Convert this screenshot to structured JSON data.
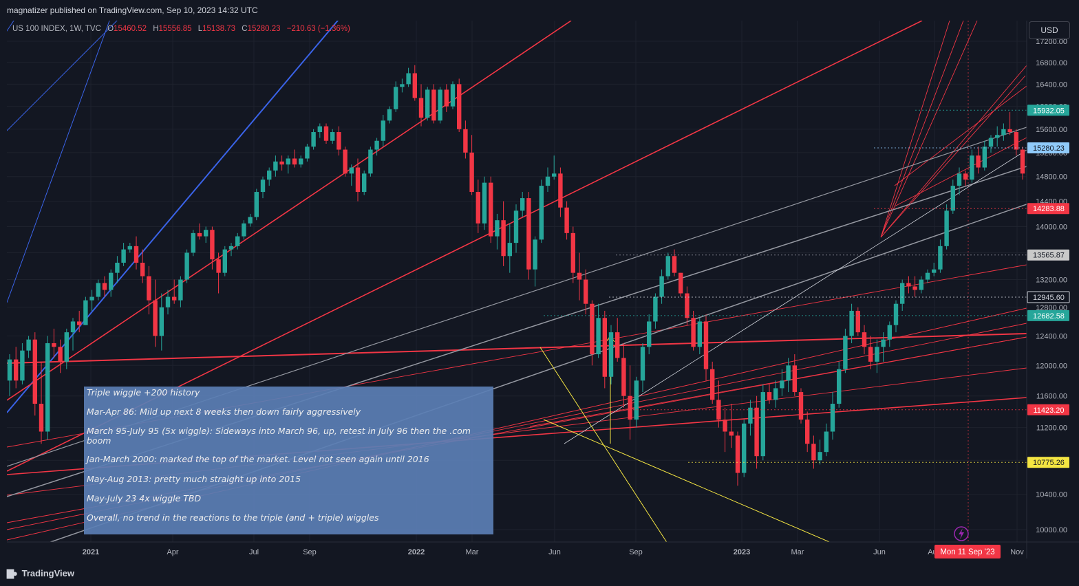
{
  "header": {
    "published": "magnatizer published on TradingView.com, Sep 10, 2023 14:32 UTC"
  },
  "legend": {
    "symbol": "US 100 INDEX, 1W, TVC",
    "open_label": "O",
    "open": "15460.52",
    "high_label": "H",
    "high": "15556.85",
    "low_label": "L",
    "low": "15138.73",
    "close_label": "C",
    "close": "15280.23",
    "change": "−210.63 (−1.36%)"
  },
  "currency_button": "USD",
  "footer": {
    "brand": "TradingView"
  },
  "colors": {
    "background": "#131722",
    "up": "#26a69a",
    "down": "#f23645",
    "red_line": "#f23645",
    "blue_line": "#3a63e8",
    "gray_line": "#9598a1",
    "yellow_line": "#f4e542",
    "note_bg": "#5b7fb5"
  },
  "note": {
    "lines": [
      "Triple wiggle +200 history",
      "Mar-Apr 86:  Mild up next 8 weeks then down fairly aggressively",
      "March 95-July 95 (5x wiggle):  Sideways into March 96, up, retest in July 96 then the .com",
      "boom",
      "Jan-March 2000:  marked the top of the market.   Level not seen again until 2016",
      "May-Aug 2013:  pretty much straight up into 2015",
      "May-July 23 4x wiggle TBD",
      "Overall, no trend in the reactions to the triple (and + triple) wiggles"
    ]
  },
  "chart_data": {
    "type": "candlestick",
    "title": "US 100 INDEX, 1W, TVC",
    "interval": "1W",
    "y_axis": {
      "ticks": [
        "10000.00",
        "10400.00",
        "10800.00",
        "11200.00",
        "11600.00",
        "12000.00",
        "12400.00",
        "12800.00",
        "13200.00",
        "13600.00",
        "14000.00",
        "14400.00",
        "14800.00",
        "15200.00",
        "15600.00",
        "16000.00",
        "16400.00",
        "16800.00",
        "17200.00"
      ],
      "range": [
        9850,
        17450
      ],
      "scale": "log"
    },
    "x_axis": {
      "ticks": [
        "2021",
        "Apr",
        "Jul",
        "Sep",
        "2022",
        "Mar",
        "Jun",
        "Sep",
        "2023",
        "Mar",
        "Jun",
        "Aug",
        "Nov"
      ],
      "cursor_label": "Mon 11 Sep '23"
    },
    "price_labels": [
      {
        "value": "15932.05",
        "style": "green"
      },
      {
        "value": "15280.23",
        "style": "blue"
      },
      {
        "value": "14283.88",
        "style": "red"
      },
      {
        "value": "13565.87",
        "style": "gray"
      },
      {
        "value": "12945.60",
        "style": "outline"
      },
      {
        "value": "12682.58",
        "style": "green"
      },
      {
        "value": "11423.20",
        "style": "red"
      },
      {
        "value": "10775.26",
        "style": "yellow"
      }
    ],
    "candles": [
      [
        11800,
        12150,
        11600,
        12080
      ],
      [
        12080,
        12250,
        11700,
        11800
      ],
      [
        11800,
        12300,
        11750,
        12200
      ],
      [
        12200,
        12400,
        12100,
        12350
      ],
      [
        12350,
        12450,
        11350,
        11500
      ],
      [
        11500,
        12050,
        11000,
        11150
      ],
      [
        11150,
        12400,
        11050,
        12300
      ],
      [
        12300,
        12500,
        12100,
        12250
      ],
      [
        12250,
        12350,
        11900,
        12050
      ],
      [
        12050,
        12500,
        11950,
        12450
      ],
      [
        12450,
        12650,
        12200,
        12600
      ],
      [
        12600,
        12750,
        12450,
        12550
      ],
      [
        12550,
        12950,
        12550,
        12900
      ],
      [
        12900,
        13050,
        12750,
        12950
      ],
      [
        12950,
        13200,
        12900,
        13150
      ],
      [
        13150,
        13250,
        12950,
        13050
      ],
      [
        13050,
        13350,
        12950,
        13300
      ],
      [
        13300,
        13550,
        13150,
        13450
      ],
      [
        13450,
        13750,
        13400,
        13650
      ],
      [
        13650,
        13750,
        13600,
        13700
      ],
      [
        13700,
        13850,
        13350,
        13450
      ],
      [
        13450,
        13650,
        13150,
        13250
      ],
      [
        13250,
        13400,
        12700,
        12900
      ],
      [
        12900,
        13200,
        12250,
        12400
      ],
      [
        12400,
        13000,
        12200,
        12800
      ],
      [
        12800,
        13050,
        12700,
        12950
      ],
      [
        12950,
        13200,
        12850,
        12900
      ],
      [
        12900,
        13250,
        12800,
        13200
      ],
      [
        13200,
        13650,
        13150,
        13600
      ],
      [
        13600,
        13950,
        13550,
        13900
      ],
      [
        13900,
        14050,
        13800,
        13850
      ],
      [
        13850,
        14000,
        13750,
        13950
      ],
      [
        13950,
        14000,
        13350,
        13500
      ],
      [
        13500,
        13600,
        13000,
        13300
      ],
      [
        13300,
        13700,
        13250,
        13650
      ],
      [
        13650,
        13750,
        13550,
        13700
      ],
      [
        13700,
        13900,
        13650,
        13850
      ],
      [
        13850,
        14100,
        13800,
        14050
      ],
      [
        14050,
        14200,
        14000,
        14150
      ],
      [
        14150,
        14600,
        14100,
        14550
      ],
      [
        14550,
        14800,
        14450,
        14750
      ],
      [
        14750,
        14950,
        14650,
        14900
      ],
      [
        14900,
        15150,
        14800,
        15050
      ],
      [
        15050,
        15150,
        14900,
        15000
      ],
      [
        15000,
        15150,
        14850,
        15100
      ],
      [
        15100,
        15250,
        14950,
        15000
      ],
      [
        15000,
        15150,
        14950,
        15100
      ],
      [
        15100,
        15350,
        15050,
        15300
      ],
      [
        15300,
        15600,
        15250,
        15550
      ],
      [
        15550,
        15700,
        15450,
        15650
      ],
      [
        15650,
        15700,
        15350,
        15400
      ],
      [
        15400,
        15600,
        15350,
        15550
      ],
      [
        15550,
        15650,
        15150,
        15250
      ],
      [
        15250,
        15300,
        14800,
        14850
      ],
      [
        14850,
        15000,
        14650,
        14950
      ],
      [
        14950,
        15100,
        14400,
        14550
      ],
      [
        14550,
        14900,
        14500,
        14850
      ],
      [
        14850,
        15300,
        14800,
        15250
      ],
      [
        15250,
        15450,
        15150,
        15400
      ],
      [
        15400,
        15850,
        15300,
        15750
      ],
      [
        15750,
        16000,
        15700,
        15950
      ],
      [
        15950,
        16450,
        15900,
        16350
      ],
      [
        16350,
        16500,
        16250,
        16400
      ],
      [
        16400,
        16700,
        16350,
        16600
      ],
      [
        16600,
        16750,
        16100,
        16150
      ],
      [
        16150,
        16400,
        15650,
        15800
      ],
      [
        15800,
        16350,
        15750,
        16300
      ],
      [
        16300,
        16400,
        15700,
        15750
      ],
      [
        15750,
        16350,
        15700,
        16300
      ],
      [
        16300,
        16400,
        15900,
        16000
      ],
      [
        16000,
        16450,
        15950,
        16400
      ],
      [
        16400,
        16500,
        15550,
        15600
      ],
      [
        15600,
        15750,
        15100,
        15200
      ],
      [
        15200,
        15500,
        14500,
        14550
      ],
      [
        14550,
        14750,
        13900,
        14050
      ],
      [
        14050,
        14800,
        13950,
        14700
      ],
      [
        14700,
        14800,
        13750,
        13850
      ],
      [
        13850,
        14200,
        13650,
        14100
      ],
      [
        14100,
        14400,
        13400,
        13550
      ],
      [
        13550,
        14050,
        13300,
        13750
      ],
      [
        13750,
        14350,
        13600,
        14250
      ],
      [
        14250,
        14550,
        14150,
        14450
      ],
      [
        14450,
        14550,
        13200,
        13350
      ],
      [
        13350,
        13850,
        13100,
        13800
      ],
      [
        13800,
        14750,
        13750,
        14650
      ],
      [
        14650,
        14950,
        14550,
        14800
      ],
      [
        14800,
        15150,
        14750,
        14850
      ],
      [
        14850,
        14950,
        14150,
        14300
      ],
      [
        14300,
        14400,
        13800,
        13900
      ],
      [
        13900,
        14000,
        13150,
        13300
      ],
      [
        13300,
        13600,
        12900,
        13200
      ],
      [
        13200,
        13350,
        12700,
        12850
      ],
      [
        12850,
        12900,
        12000,
        12150
      ],
      [
        12150,
        12850,
        12100,
        12650
      ],
      [
        12650,
        12750,
        11700,
        11850
      ],
      [
        11850,
        12550,
        11750,
        12450
      ],
      [
        12450,
        12650,
        12050,
        12100
      ],
      [
        12100,
        12300,
        11450,
        11600
      ],
      [
        11600,
        12000,
        11050,
        11300
      ],
      [
        11300,
        11850,
        11200,
        11800
      ],
      [
        11800,
        12300,
        11650,
        12250
      ],
      [
        12250,
        12700,
        12150,
        12600
      ],
      [
        12600,
        13000,
        12500,
        12950
      ],
      [
        12950,
        13350,
        12850,
        13250
      ],
      [
        13250,
        13600,
        13200,
        13550
      ],
      [
        13550,
        13650,
        13250,
        13300
      ],
      [
        13300,
        13300,
        12950,
        13000
      ],
      [
        13000,
        13100,
        12550,
        12650
      ],
      [
        12650,
        12750,
        12200,
        12250
      ],
      [
        12250,
        12650,
        12150,
        12600
      ],
      [
        12600,
        12700,
        11800,
        11950
      ],
      [
        11950,
        12050,
        11500,
        11550
      ],
      [
        11550,
        11800,
        11200,
        11300
      ],
      [
        11300,
        11450,
        10900,
        11150
      ],
      [
        11150,
        11500,
        10950,
        11100
      ],
      [
        11100,
        11150,
        10500,
        10650
      ],
      [
        10650,
        11300,
        10600,
        11250
      ],
      [
        11250,
        11550,
        11100,
        11450
      ],
      [
        11450,
        11600,
        10700,
        10850
      ],
      [
        10850,
        11750,
        10800,
        11650
      ],
      [
        11650,
        11750,
        11500,
        11550
      ],
      [
        11550,
        11800,
        11450,
        11700
      ],
      [
        11700,
        11950,
        11600,
        11800
      ],
      [
        11800,
        12100,
        11650,
        12000
      ],
      [
        12000,
        12150,
        11600,
        11650
      ],
      [
        11650,
        11700,
        11250,
        11300
      ],
      [
        11300,
        11400,
        10900,
        11000
      ],
      [
        11000,
        11100,
        10700,
        10800
      ],
      [
        10800,
        11050,
        10750,
        10900
      ],
      [
        10900,
        11250,
        10850,
        11150
      ],
      [
        11150,
        11650,
        11050,
        11500
      ],
      [
        11500,
        12050,
        11450,
        11950
      ],
      [
        11950,
        12500,
        11900,
        12400
      ],
      [
        12400,
        12850,
        12300,
        12750
      ],
      [
        12750,
        12800,
        12400,
        12450
      ],
      [
        12450,
        12550,
        12150,
        12250
      ],
      [
        12250,
        12400,
        11950,
        12050
      ],
      [
        12050,
        12350,
        11900,
        12250
      ],
      [
        12250,
        12450,
        12050,
        12350
      ],
      [
        12350,
        12600,
        12250,
        12550
      ],
      [
        12550,
        12900,
        12450,
        12850
      ],
      [
        12850,
        13200,
        12750,
        13150
      ],
      [
        13150,
        13250,
        13000,
        13100
      ],
      [
        13100,
        13250,
        12950,
        13050
      ],
      [
        13050,
        13250,
        13000,
        13200
      ],
      [
        13200,
        13350,
        13150,
        13300
      ],
      [
        13300,
        13450,
        13250,
        13350
      ],
      [
        13350,
        13800,
        13300,
        13700
      ],
      [
        13700,
        14350,
        13650,
        14250
      ],
      [
        14250,
        14750,
        14200,
        14650
      ],
      [
        14650,
        14950,
        14500,
        14850
      ],
      [
        14850,
        14900,
        14650,
        14750
      ],
      [
        14750,
        15250,
        14700,
        15150
      ],
      [
        15150,
        15300,
        14850,
        14950
      ],
      [
        14950,
        15400,
        14900,
        15300
      ],
      [
        15300,
        15500,
        15200,
        15450
      ],
      [
        15450,
        15650,
        15300,
        15500
      ],
      [
        15500,
        15700,
        15400,
        15600
      ],
      [
        15600,
        15900,
        15500,
        15550
      ],
      [
        15550,
        15600,
        15150,
        15250
      ],
      [
        15250,
        15300,
        14750,
        14850
      ],
      [
        14850,
        15100,
        14550,
        14700
      ],
      [
        14700,
        14900,
        14600,
        14850
      ],
      [
        14850,
        15300,
        14800,
        15200
      ],
      [
        15200,
        15550,
        15150,
        15450
      ],
      [
        15460.52,
        15556.85,
        15138.73,
        15280.23
      ]
    ]
  }
}
